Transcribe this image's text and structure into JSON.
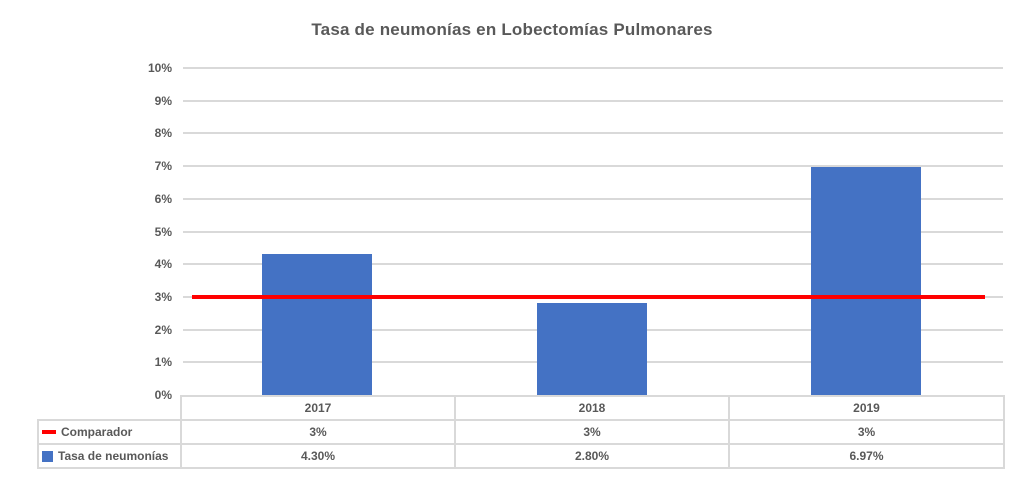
{
  "title": "Tasa de neumonías en Lobectomías Pulmonares",
  "colors": {
    "bar": "#4472C4",
    "comparator_line": "#FF0000",
    "gridline": "#D9D9D9",
    "table_border": "#D9D9D9",
    "text": "#595959"
  },
  "chart_data": {
    "type": "bar",
    "title": "Tasa de neumonías en Lobectomías Pulmonares",
    "categories": [
      "2017",
      "2018",
      "2019"
    ],
    "series": [
      {
        "name": "Comparador",
        "type": "line",
        "color": "#FF0000",
        "values": [
          3,
          3,
          3
        ],
        "labels": [
          "3%",
          "3%",
          "3%"
        ]
      },
      {
        "name": "Tasa de neumonías",
        "type": "bar",
        "color": "#4472C4",
        "values": [
          4.3,
          2.8,
          6.97
        ],
        "labels": [
          "4.30%",
          "2.80%",
          "6.97%"
        ]
      }
    ],
    "xlabel": "",
    "ylabel": "",
    "ylim": [
      0,
      10
    ],
    "ytick_step": 1,
    "ytick_labels": [
      "0%",
      "1%",
      "2%",
      "3%",
      "4%",
      "5%",
      "6%",
      "7%",
      "8%",
      "9%",
      "10%"
    ],
    "grid": true,
    "legend_position": "data-table-left",
    "data_table": true
  }
}
